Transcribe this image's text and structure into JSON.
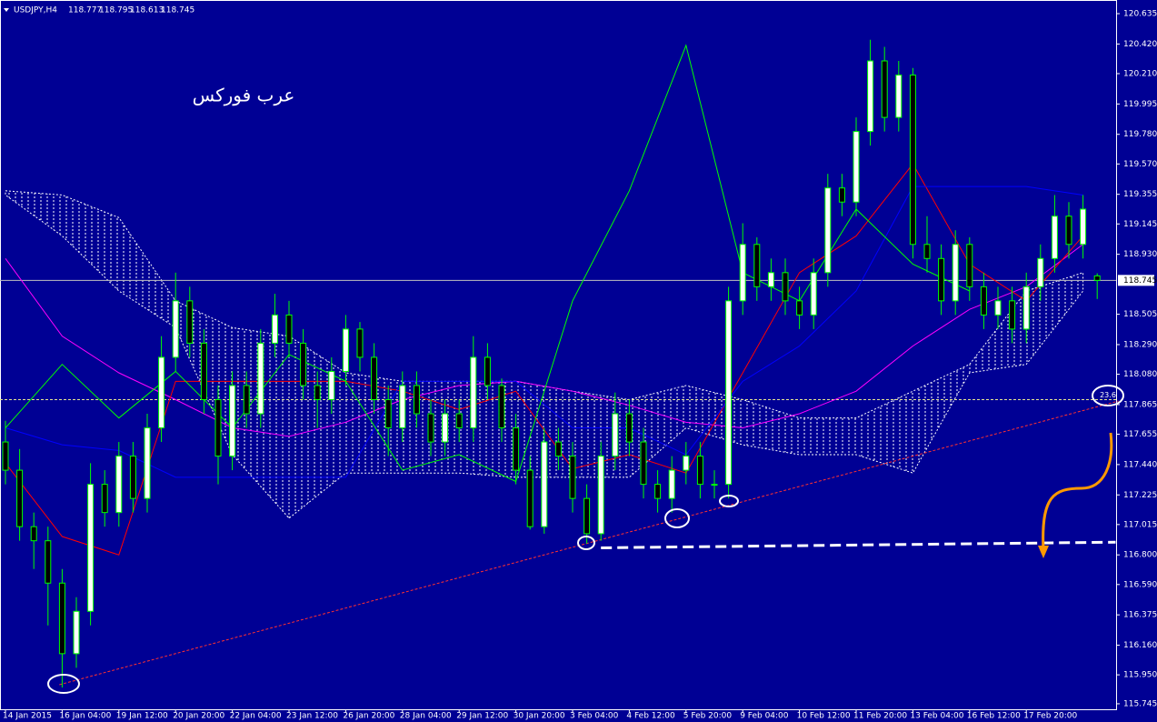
{
  "chart_data": {
    "type": "candlestick",
    "title": "USDJPY,H4",
    "quote": [
      118.777,
      118.795,
      118.613,
      118.745
    ],
    "annotation": "عرب فوركس",
    "categories": [
      "14 Jan 2015",
      null,
      null,
      null,
      "16 Jan 04:00",
      null,
      null,
      null,
      "19 Jan 12:00",
      null,
      null,
      null,
      "20 Jan 20:00",
      null,
      null,
      null,
      "22 Jan 04:00",
      null,
      null,
      null,
      "23 Jan 12:00",
      null,
      null,
      null,
      "26 Jan 20:00",
      null,
      null,
      null,
      "28 Jan 04:00",
      null,
      null,
      null,
      "29 Jan 12:00",
      null,
      null,
      null,
      "30 Jan 20:00",
      null,
      null,
      null,
      "3 Feb 04:00",
      null,
      null,
      null,
      "4 Feb 12:00",
      null,
      null,
      null,
      "5 Feb 20:00",
      null,
      null,
      null,
      "9 Feb 04:00",
      null,
      null,
      null,
      "10 Feb 12:00",
      null,
      null,
      null,
      "11 Feb 20:00",
      null,
      null,
      null,
      "13 Feb 04:00",
      null,
      null,
      null,
      "16 Feb 12:00",
      null,
      null,
      null,
      "17 Feb 20:00",
      null,
      null,
      null,
      null,
      null
    ],
    "open": [
      117.6,
      117.4,
      117.0,
      116.9,
      116.6,
      116.1,
      116.4,
      117.3,
      117.1,
      117.5,
      117.2,
      117.7,
      118.2,
      118.6,
      118.3,
      117.9,
      117.5,
      118.0,
      117.8,
      118.3,
      118.5,
      118.3,
      118.0,
      117.9,
      118.1,
      118.4,
      118.2,
      117.9,
      117.7,
      118.0,
      117.8,
      117.6,
      117.8,
      117.7,
      118.2,
      118.0,
      117.7,
      117.4,
      117.0,
      117.6,
      117.5,
      117.2,
      116.95,
      117.5,
      117.8,
      117.6,
      117.3,
      117.2,
      117.4,
      117.5,
      117.3,
      117.3,
      118.6,
      119.0,
      118.7,
      118.8,
      118.6,
      118.5,
      118.8,
      119.4,
      119.3,
      119.8,
      120.3,
      119.9,
      120.2,
      119.0,
      118.9,
      118.6,
      119.0,
      118.7,
      118.5,
      118.6,
      118.4,
      118.7,
      118.9,
      119.2,
      119.0,
      118.777
    ],
    "high": [
      117.75,
      117.55,
      117.1,
      117.0,
      116.7,
      116.5,
      117.45,
      117.4,
      117.6,
      117.6,
      117.8,
      118.35,
      118.8,
      118.7,
      118.4,
      118.0,
      118.1,
      118.1,
      118.4,
      118.65,
      118.6,
      118.4,
      118.1,
      118.2,
      118.5,
      118.45,
      118.3,
      118.0,
      118.1,
      118.1,
      117.9,
      117.9,
      117.9,
      118.35,
      118.3,
      118.05,
      117.8,
      117.5,
      117.7,
      117.7,
      117.6,
      117.3,
      117.6,
      117.95,
      117.9,
      117.7,
      117.4,
      117.5,
      117.6,
      117.6,
      117.4,
      118.7,
      119.15,
      119.05,
      118.9,
      118.9,
      118.7,
      118.9,
      119.5,
      119.5,
      119.9,
      120.45,
      120.4,
      120.3,
      120.25,
      119.2,
      119.0,
      119.1,
      119.05,
      118.8,
      118.7,
      118.7,
      118.8,
      119.0,
      119.35,
      119.3,
      119.35,
      118.795
    ],
    "low": [
      117.3,
      116.9,
      116.7,
      116.3,
      115.86,
      116.0,
      116.3,
      117.0,
      117.0,
      117.1,
      117.1,
      117.6,
      118.1,
      118.2,
      117.8,
      117.3,
      117.4,
      117.7,
      117.7,
      118.2,
      118.2,
      117.9,
      117.7,
      117.8,
      118.0,
      118.1,
      117.8,
      117.5,
      117.6,
      117.7,
      117.5,
      117.5,
      117.6,
      117.6,
      117.9,
      117.6,
      117.3,
      116.98,
      116.95,
      117.4,
      117.1,
      116.88,
      116.9,
      117.4,
      117.5,
      117.2,
      117.1,
      117.1,
      117.3,
      117.2,
      117.2,
      117.2,
      118.5,
      118.6,
      118.6,
      118.5,
      118.4,
      118.4,
      118.7,
      119.2,
      119.2,
      119.7,
      119.8,
      119.8,
      118.9,
      118.8,
      118.5,
      118.5,
      118.6,
      118.4,
      118.4,
      118.3,
      118.3,
      118.6,
      118.8,
      118.9,
      118.9,
      118.613
    ],
    "close": [
      117.4,
      117.0,
      116.9,
      116.6,
      116.1,
      116.4,
      117.3,
      117.1,
      117.5,
      117.2,
      117.7,
      118.2,
      118.6,
      118.3,
      117.9,
      117.5,
      118.0,
      117.8,
      118.3,
      118.5,
      118.3,
      118.0,
      117.9,
      118.1,
      118.4,
      118.2,
      117.9,
      117.7,
      118.0,
      117.8,
      117.6,
      117.8,
      117.7,
      118.2,
      118.0,
      117.7,
      117.4,
      117.0,
      117.6,
      117.5,
      117.2,
      116.95,
      117.5,
      117.8,
      117.6,
      117.3,
      117.2,
      117.4,
      117.5,
      117.3,
      117.3,
      118.6,
      119.0,
      118.7,
      118.8,
      118.6,
      118.5,
      118.8,
      119.4,
      119.3,
      119.8,
      120.3,
      119.9,
      120.2,
      119.0,
      118.9,
      118.6,
      119.0,
      118.7,
      118.5,
      118.6,
      118.4,
      118.7,
      118.9,
      119.2,
      119.0,
      119.25,
      118.745
    ],
    "up_color": "#ffffff",
    "down_color": "#000000",
    "wick_color": "#00ff00",
    "cloud": {
      "x": [
        0,
        4,
        8,
        12,
        16,
        20,
        24,
        28,
        32,
        36,
        40,
        44,
        48,
        52,
        56,
        60,
        64,
        68,
        72,
        76
      ],
      "upper": [
        119.38,
        119.35,
        119.19,
        118.6,
        118.41,
        118.35,
        118.09,
        118.03,
        118.03,
        118.03,
        117.96,
        117.9,
        118.0,
        117.9,
        117.77,
        117.77,
        117.96,
        118.15,
        118.67,
        118.8
      ],
      "lower": [
        119.35,
        119.06,
        118.67,
        118.41,
        117.51,
        117.06,
        117.38,
        117.38,
        117.38,
        117.35,
        117.35,
        117.35,
        117.7,
        117.58,
        117.51,
        117.51,
        117.38,
        118.09,
        118.15,
        118.67
      ],
      "color": "#ffffff"
    },
    "lines": [
      {
        "color": "#ff00ff",
        "x": [
          0,
          4,
          8,
          12,
          16,
          20,
          24,
          28,
          32,
          36,
          40,
          44,
          48,
          52,
          56,
          60,
          64,
          68,
          72,
          76
        ],
        "values": [
          118.9,
          118.35,
          118.09,
          117.9,
          117.7,
          117.64,
          117.74,
          117.9,
          118.0,
          118.03,
          117.96,
          117.86,
          117.74,
          117.7,
          117.8,
          117.96,
          118.28,
          118.54,
          118.7,
          119.0
        ]
      },
      {
        "color": "#ff0000",
        "x": [
          0,
          4,
          8,
          12,
          16,
          20,
          24,
          28,
          32,
          36,
          40,
          44,
          48,
          52,
          56,
          60,
          64,
          68,
          72,
          76
        ],
        "values": [
          117.45,
          116.93,
          116.8,
          118.03,
          118.03,
          118.03,
          118.03,
          117.96,
          117.83,
          117.96,
          117.41,
          117.51,
          117.38,
          118.09,
          118.8,
          119.06,
          119.57,
          118.86,
          118.6,
          119.06
        ]
      },
      {
        "color": "#0000ff",
        "x": [
          0,
          4,
          8,
          12,
          16,
          20,
          24,
          28,
          32,
          36,
          40,
          44,
          48,
          52,
          56,
          60,
          64,
          68,
          72,
          76
        ],
        "values": [
          117.7,
          117.58,
          117.54,
          117.35,
          117.35,
          117.35,
          117.35,
          118.03,
          118.03,
          118.03,
          117.7,
          117.7,
          117.51,
          118.03,
          118.28,
          118.67,
          119.41,
          119.41,
          119.41,
          119.35
        ]
      },
      {
        "color": "#00ff00",
        "x": [
          0,
          4,
          8,
          12,
          16,
          20,
          24,
          28,
          32,
          36,
          40,
          44,
          48,
          52,
          56,
          60,
          64,
          68,
          72,
          76
        ],
        "values": [
          117.7,
          118.15,
          117.77,
          118.1,
          117.7,
          118.22,
          118.03,
          117.4,
          117.51,
          117.32,
          118.6,
          119.38,
          120.41,
          118.8,
          118.6,
          119.25,
          118.86,
          118.67,
          null,
          null
        ]
      }
    ],
    "trendline": {
      "x": [
        3.8,
        78.5
      ],
      "values": [
        115.88,
        117.89
      ],
      "color": "#ff3030"
    },
    "support": {
      "x": [
        42,
        78.3
      ],
      "values": [
        116.85,
        116.89
      ],
      "color": "#ffffff"
    },
    "fibo": {
      "label": "23.6",
      "value": 117.9,
      "color": "#e8e890"
    },
    "last_price": 118.745,
    "ylim": [
      115.706,
      120.706
    ],
    "yticks": [
      120.635,
      {
        "value": 120.42,
        "label": "120.420"
      },
      {
        "value": 120.21,
        "label": "120.210"
      },
      119.995,
      {
        "value": 119.78,
        "label": "119.780"
      },
      {
        "value": 119.57,
        "label": "119.570"
      },
      119.355,
      119.145,
      {
        "value": 118.93,
        "label": "118.930"
      },
      118.505,
      {
        "value": 118.29,
        "label": "118.290"
      },
      {
        "value": 118.08,
        "label": "118.080"
      },
      117.865,
      117.655,
      {
        "value": 117.44,
        "label": "117.440"
      },
      117.225,
      117.015,
      {
        "value": 116.8,
        "label": "116.800"
      },
      {
        "value": 116.59,
        "label": "116.590"
      },
      116.375,
      {
        "value": 116.16,
        "label": "116.160"
      },
      {
        "value": 115.95,
        "label": "115.950"
      },
      115.745
    ]
  }
}
